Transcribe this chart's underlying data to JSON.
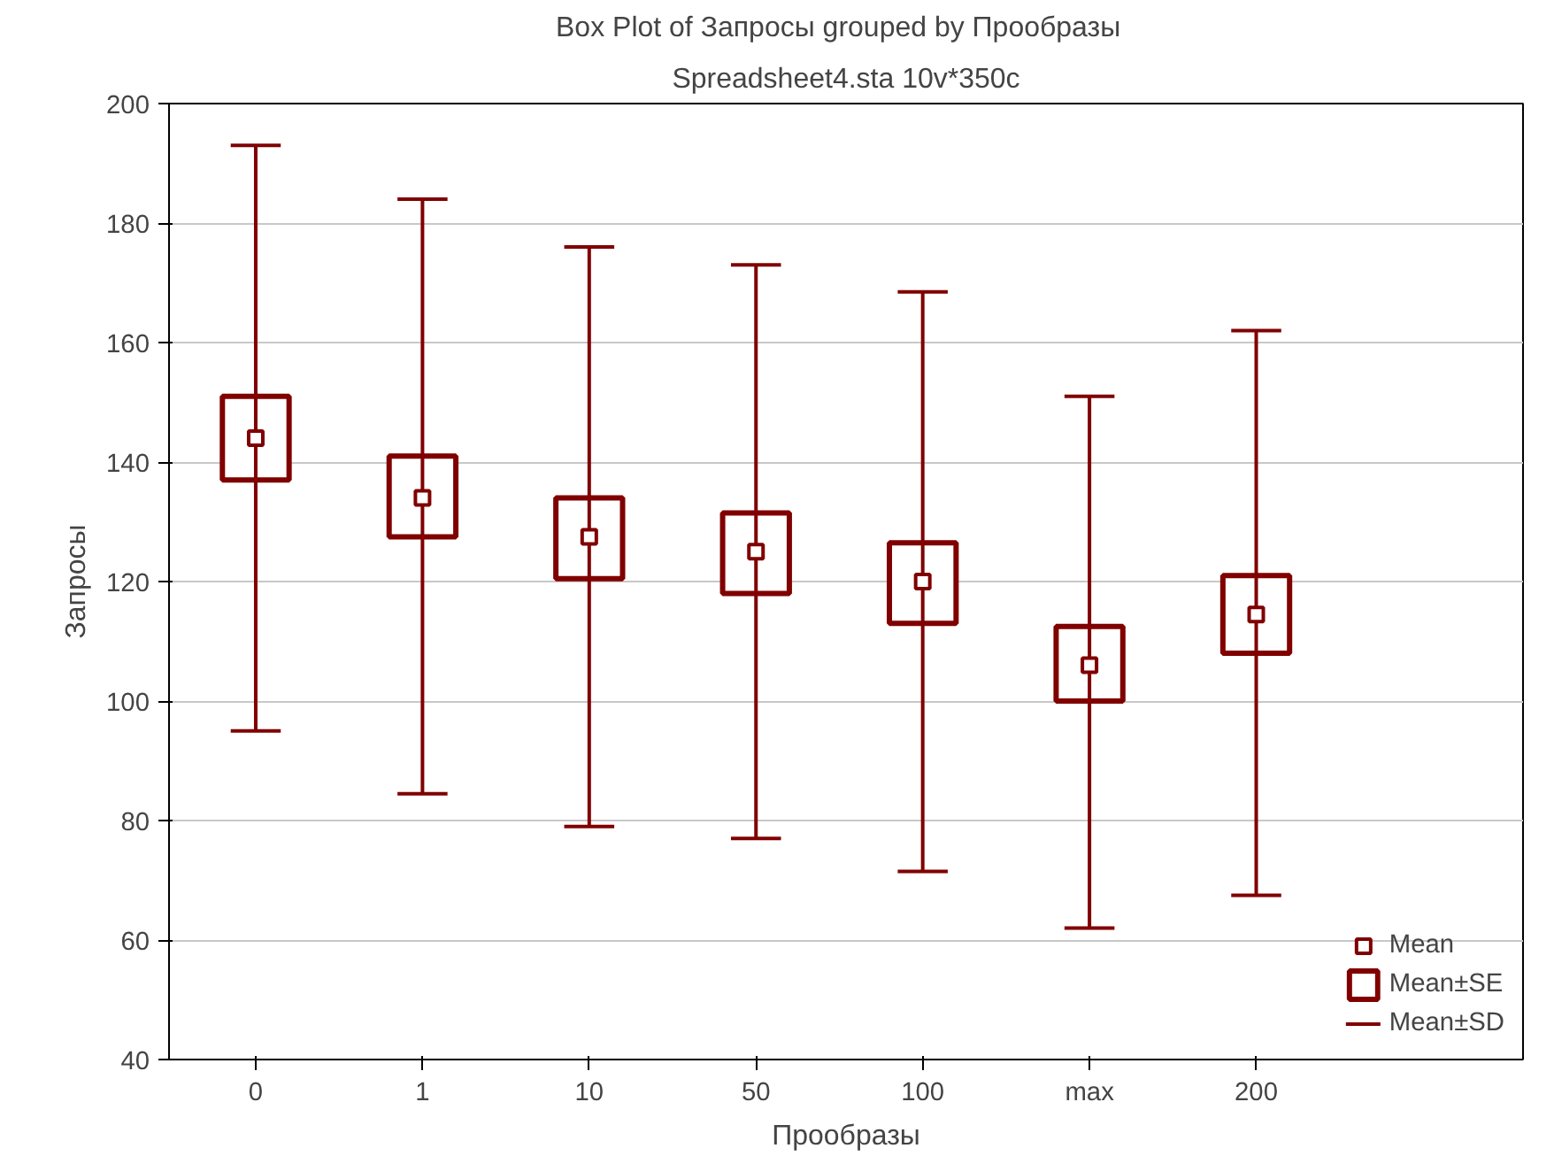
{
  "chart_data": {
    "type": "scatter",
    "title": "Box Plot of Запросы grouped by   Прообразы",
    "subtitle": "Spreadsheet4.sta 10v*350c",
    "xlabel": "Прообразы",
    "ylabel": "Запросы",
    "categories": [
      "0",
      "1",
      "10",
      "50",
      "100",
      "max",
      "200"
    ],
    "series": [
      {
        "name": "Mean",
        "marker": "square",
        "color": "#800000",
        "values": [
          144,
          134,
          127.5,
          125,
          120,
          106,
          114.5
        ],
        "errors": [
          [
            95,
            193
          ],
          [
            84.5,
            184
          ],
          [
            79,
            176
          ],
          [
            77,
            173
          ],
          [
            71.5,
            168.5
          ],
          [
            62,
            151
          ],
          [
            67.5,
            162
          ]
        ]
      },
      {
        "name": "Mean±SE",
        "type": "bar",
        "color": "#800000",
        "base": [
          137,
          127.5,
          120.5,
          118,
          113,
          100,
          108
        ],
        "values": [
          14,
          13.5,
          13.5,
          13.5,
          13.5,
          12.5,
          13
        ]
      }
    ],
    "annotations": [
      "Mean±SD"
    ],
    "ylim": [
      40,
      200
    ],
    "yticks": [
      40,
      60,
      80,
      100,
      120,
      140,
      160,
      180,
      200
    ],
    "grid": "y",
    "legend": "bottom right"
  }
}
